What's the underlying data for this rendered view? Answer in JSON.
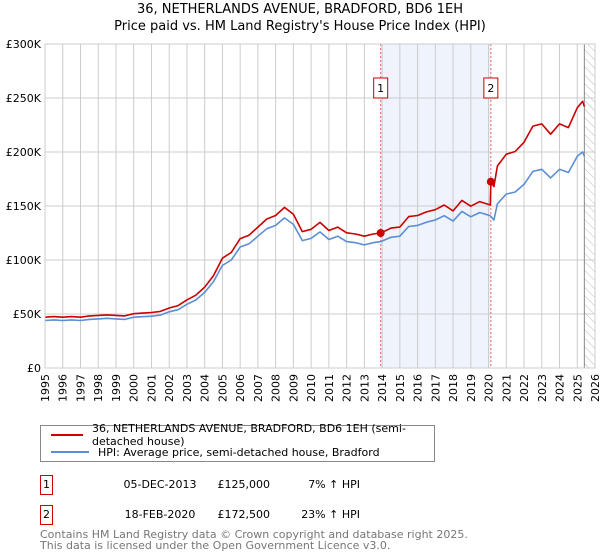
{
  "chart_data": {
    "type": "line",
    "title": "36, NETHERLANDS AVENUE, BRADFORD, BD6 1EH",
    "subtitle": "Price paid vs. HM Land Registry's House Price Index (HPI)",
    "xlabel": "",
    "ylabel": "",
    "xlim": [
      1995,
      2026
    ],
    "ylim": [
      0,
      300000
    ],
    "x_ticks": [
      1995,
      1996,
      1997,
      1998,
      1999,
      2000,
      2001,
      2002,
      2003,
      2004,
      2005,
      2006,
      2007,
      2008,
      2009,
      2010,
      2011,
      2012,
      2013,
      2014,
      2015,
      2016,
      2017,
      2018,
      2019,
      2020,
      2021,
      2022,
      2023,
      2024,
      2025,
      2026
    ],
    "y_ticks": [
      0,
      50000,
      100000,
      150000,
      200000,
      250000,
      300000
    ],
    "y_tick_labels": [
      "£0",
      "£50K",
      "£100K",
      "£150K",
      "£200K",
      "£250K",
      "£300K"
    ],
    "grid": true,
    "colors": {
      "property": "#cc0000",
      "hpi": "#5b8fd4",
      "shade": "#eef3fc"
    },
    "series": [
      {
        "name": "36, NETHERLANDS AVENUE, BRADFORD, BD6 1EH (semi-detached house)",
        "x": [
          1995,
          1995.5,
          1996,
          1996.5,
          1997,
          1997.5,
          1998,
          1998.5,
          1999,
          1999.5,
          2000,
          2000.5,
          2001,
          2001.5,
          2002,
          2002.5,
          2003,
          2003.5,
          2004,
          2004.5,
          2005,
          2005.5,
          2006,
          2006.5,
          2007,
          2007.5,
          2008,
          2008.5,
          2009,
          2009.5,
          2010,
          2010.5,
          2011,
          2011.5,
          2012,
          2012.5,
          2013,
          2013.5,
          2013.92,
          2014.5,
          2015,
          2015.5,
          2016,
          2016.5,
          2017,
          2017.5,
          2018,
          2018.5,
          2019,
          2019.5,
          2020.1,
          2020.13,
          2020.3,
          2020.5,
          2021,
          2021.5,
          2022,
          2022.5,
          2023,
          2023.5,
          2024,
          2024.5,
          2025,
          2025.3,
          2025.4
        ],
        "values": [
          47,
          47.6,
          47,
          47.6,
          47,
          48.2,
          48.7,
          49.2,
          48.7,
          48.2,
          50.3,
          50.8,
          51.4,
          52.4,
          55.6,
          57.8,
          63.1,
          67.4,
          74.9,
          85.6,
          101.7,
          107,
          119.8,
          123,
          130.5,
          138,
          141.2,
          148.7,
          142.3,
          126.3,
          128.4,
          134.8,
          127.3,
          130.5,
          125.2,
          124.1,
          122,
          124.1,
          125,
          129.5,
          130.5,
          140.2,
          141.2,
          144.5,
          146.6,
          150.9,
          145.5,
          155.2,
          149.8,
          154.1,
          150.9,
          172.5,
          168,
          187,
          198,
          200.5,
          209,
          224,
          226,
          216.5,
          226,
          222.6,
          241,
          247,
          242
        ],
        "unit": "£K"
      },
      {
        "name": "HPI: Average price, semi-detached house, Bradford",
        "x": [
          1995,
          1995.5,
          1996,
          1996.5,
          1997,
          1997.5,
          1998,
          1998.5,
          1999,
          1999.5,
          2000,
          2000.5,
          2001,
          2001.5,
          2002,
          2002.5,
          2003,
          2003.5,
          2004,
          2004.5,
          2005,
          2005.5,
          2006,
          2006.5,
          2007,
          2007.5,
          2008,
          2008.5,
          2009,
          2009.5,
          2010,
          2010.5,
          2011,
          2011.5,
          2012,
          2012.5,
          2013,
          2013.5,
          2013.92,
          2014.5,
          2015,
          2015.5,
          2016,
          2016.5,
          2017,
          2017.5,
          2018,
          2018.5,
          2019,
          2019.5,
          2020.1,
          2020.3,
          2020.5,
          2021,
          2021.5,
          2022,
          2022.5,
          2023,
          2023.5,
          2024,
          2024.5,
          2025,
          2025.3,
          2025.4
        ],
        "values": [
          44,
          44.5,
          44,
          44.5,
          44,
          45,
          45.5,
          46,
          45.5,
          45,
          47,
          47.5,
          48,
          49,
          52,
          54,
          59,
          63,
          70,
          80,
          95,
          100,
          112,
          115,
          122,
          129,
          132,
          139,
          133,
          118,
          120,
          126,
          119,
          122,
          117,
          116,
          114,
          116,
          117,
          121,
          122,
          131,
          132,
          135,
          137,
          141,
          136,
          145,
          140,
          144,
          141,
          137,
          152,
          161,
          163,
          170,
          182,
          184,
          176,
          184,
          181,
          196,
          200,
          196
        ],
        "unit": "£K"
      }
    ],
    "annotations": [
      {
        "label": "1",
        "x": 2013.92,
        "value": 125000
      },
      {
        "label": "2",
        "x": 2020.13,
        "value": 172500
      }
    ]
  },
  "legend": {
    "property": "36, NETHERLANDS AVENUE, BRADFORD, BD6 1EH (semi-detached house)",
    "hpi": "HPI: Average price, semi-detached house, Bradford"
  },
  "sales": [
    {
      "num": "1",
      "date": "05-DEC-2013",
      "price": "£125,000",
      "hpi": "7% ↑ HPI"
    },
    {
      "num": "2",
      "date": "18-FEB-2020",
      "price": "£172,500",
      "hpi": "23% ↑ HPI"
    }
  ],
  "footer": {
    "line1": "Contains HM Land Registry data © Crown copyright and database right 2025.",
    "line2": "This data is licensed under the Open Government Licence v3.0."
  }
}
